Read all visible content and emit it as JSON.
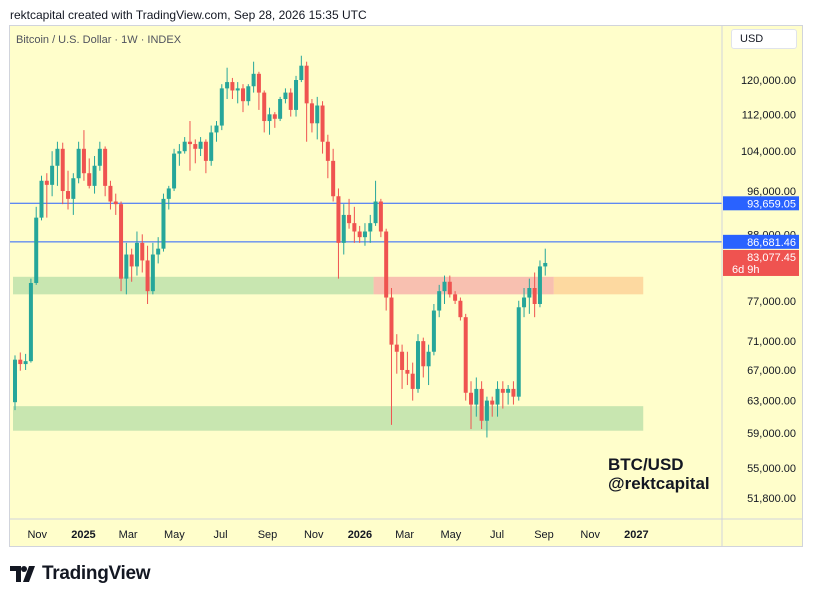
{
  "header": {
    "text": "rektcapital created with TradingView.com, Sep 28, 2026 15:35 UTC"
  },
  "symbol_label": "Bitcoin / U.S. Dollar · 1W · INDEX",
  "currency": "USD",
  "watermark": {
    "line1": "BTC/USD",
    "line2": "@rektcapital"
  },
  "footer": {
    "brand": "TradingView",
    "logo_icon": "tradingview-logo-icon"
  },
  "colors": {
    "background": "#fffecb",
    "up": "#26a69a",
    "down": "#ef5350",
    "zone_green": "#c8e6b0",
    "zone_red": "#f8c0b0",
    "zone_orange": "#fdd9a0",
    "hline": "#2962ff",
    "tag_blue": "#2962ff",
    "tag_red": "#ef5350"
  },
  "chart_data": {
    "type": "candlestick",
    "title": "Bitcoin / U.S. Dollar · 1W · INDEX",
    "y_scale": "log",
    "y_ticks": [
      120000,
      112000,
      104000,
      96000,
      88000,
      77000,
      71000,
      67000,
      63000,
      59000,
      55000,
      51800
    ],
    "y_tick_labels": [
      "120,000.00",
      "112,000.00",
      "104,000.00",
      "96,000.00",
      "88,000.00",
      "77,000.00",
      "71,000.00",
      "67,000.00",
      "63,000.00",
      "59,000.00",
      "55,000.00",
      "51,800.00"
    ],
    "x_labels": [
      {
        "label": "Nov",
        "date": "2024-11-01",
        "bold": false
      },
      {
        "label": "2025",
        "date": "2025-01-01",
        "bold": true
      },
      {
        "label": "Mar",
        "date": "2025-03-01",
        "bold": false
      },
      {
        "label": "May",
        "date": "2025-05-01",
        "bold": false
      },
      {
        "label": "Jul",
        "date": "2025-07-01",
        "bold": false
      },
      {
        "label": "Sep",
        "date": "2025-09-01",
        "bold": false
      },
      {
        "label": "Nov",
        "date": "2025-11-01",
        "bold": false
      },
      {
        "label": "2026",
        "date": "2026-01-01",
        "bold": true
      },
      {
        "label": "Mar",
        "date": "2026-03-01",
        "bold": false
      },
      {
        "label": "May",
        "date": "2026-05-01",
        "bold": false
      },
      {
        "label": "Jul",
        "date": "2026-07-01",
        "bold": false
      },
      {
        "label": "Sep",
        "date": "2026-09-01",
        "bold": false
      },
      {
        "label": "Nov",
        "date": "2026-11-01",
        "bold": false
      },
      {
        "label": "2027",
        "date": "2027-01-01",
        "bold": true
      }
    ],
    "first_candle_date": "2024-09-30",
    "candle_interval": "1W",
    "candles": [
      [
        62800,
        69000,
        61800,
        68400
      ],
      [
        68400,
        69400,
        66900,
        67800
      ],
      [
        67800,
        69200,
        67000,
        68200
      ],
      [
        68200,
        80500,
        68000,
        79800
      ],
      [
        79800,
        93000,
        79500,
        91000
      ],
      [
        91000,
        99000,
        90500,
        98000
      ],
      [
        98000,
        99500,
        91000,
        97200
      ],
      [
        97200,
        104000,
        95000,
        101000
      ],
      [
        101000,
        106000,
        97000,
        104500
      ],
      [
        104500,
        105800,
        93500,
        96000
      ],
      [
        96000,
        100000,
        92500,
        94500
      ],
      [
        94500,
        99500,
        91500,
        98500
      ],
      [
        98500,
        106000,
        97500,
        104500
      ],
      [
        104500,
        108500,
        98000,
        99500
      ],
      [
        99500,
        102500,
        96500,
        97000
      ],
      [
        97000,
        103000,
        95500,
        101000
      ],
      [
        101000,
        106000,
        100000,
        104500
      ],
      [
        104500,
        105000,
        95000,
        97000
      ],
      [
        97000,
        98000,
        92500,
        94000
      ],
      [
        94000,
        95500,
        91500,
        93500
      ],
      [
        93500,
        94000,
        78500,
        80500
      ],
      [
        80500,
        86500,
        78000,
        84500
      ],
      [
        84500,
        85500,
        80000,
        82500
      ],
      [
        82500,
        88500,
        81000,
        86500
      ],
      [
        86500,
        88000,
        81500,
        83500
      ],
      [
        83500,
        86000,
        76500,
        78500
      ],
      [
        78500,
        86500,
        78000,
        84500
      ],
      [
        84500,
        87500,
        83000,
        85500
      ],
      [
        85500,
        95500,
        85000,
        94500
      ],
      [
        94500,
        97000,
        92500,
        96500
      ],
      [
        96500,
        104500,
        96000,
        103500
      ],
      [
        103500,
        105500,
        101000,
        104000
      ],
      [
        104000,
        107000,
        103500,
        106000
      ],
      [
        106000,
        110500,
        100000,
        105500
      ],
      [
        105500,
        106500,
        101500,
        104500
      ],
      [
        104500,
        107000,
        103000,
        106000
      ],
      [
        106000,
        106500,
        99500,
        102000
      ],
      [
        102000,
        109500,
        101000,
        108000
      ],
      [
        108000,
        110500,
        106000,
        109500
      ],
      [
        109500,
        119000,
        108500,
        118000
      ],
      [
        118000,
        123000,
        115500,
        119500
      ],
      [
        119500,
        120500,
        115500,
        117500
      ],
      [
        117500,
        119500,
        114500,
        118000
      ],
      [
        118000,
        119000,
        112500,
        115000
      ],
      [
        115000,
        119000,
        114000,
        118500
      ],
      [
        118500,
        124500,
        117000,
        121500
      ],
      [
        121500,
        122000,
        113000,
        117000
      ],
      [
        117000,
        117500,
        108000,
        110500
      ],
      [
        110500,
        113500,
        107500,
        112000
      ],
      [
        112000,
        112500,
        109000,
        111000
      ],
      [
        111000,
        116000,
        110500,
        115500
      ],
      [
        115500,
        118000,
        114500,
        117000
      ],
      [
        117000,
        118000,
        111500,
        113000
      ],
      [
        113000,
        121000,
        111500,
        120000
      ],
      [
        120000,
        126000,
        119500,
        123500
      ],
      [
        123500,
        124500,
        106000,
        114500
      ],
      [
        114500,
        115500,
        108000,
        110000
      ],
      [
        110000,
        116000,
        106500,
        114000
      ],
      [
        114000,
        115000,
        103500,
        106000
      ],
      [
        106000,
        107500,
        98500,
        102000
      ],
      [
        102000,
        104500,
        94000,
        95000
      ],
      [
        95000,
        96500,
        80500,
        86500
      ],
      [
        86500,
        93500,
        84500,
        91500
      ],
      [
        91500,
        94500,
        89000,
        90000
      ],
      [
        90000,
        93000,
        86500,
        88500
      ],
      [
        88500,
        89500,
        86500,
        87500
      ],
      [
        87500,
        90000,
        86000,
        88500
      ],
      [
        88500,
        91500,
        86500,
        90000
      ],
      [
        90000,
        98000,
        89500,
        94000
      ],
      [
        94000,
        94500,
        87500,
        88500
      ],
      [
        88500,
        89000,
        75500,
        77500
      ],
      [
        77500,
        79000,
        60000,
        70500
      ],
      [
        70500,
        72000,
        66500,
        69500
      ],
      [
        69500,
        70500,
        64500,
        67000
      ],
      [
        67000,
        69500,
        65000,
        66500
      ],
      [
        66500,
        68000,
        63000,
        64500
      ],
      [
        64500,
        72000,
        64000,
        71000
      ],
      [
        71000,
        71500,
        66000,
        67500
      ],
      [
        67500,
        70500,
        65000,
        69500
      ],
      [
        69500,
        76500,
        69000,
        75500
      ],
      [
        75500,
        79500,
        74500,
        78500
      ],
      [
        78500,
        81000,
        76500,
        80000
      ],
      [
        80000,
        81000,
        77500,
        78000
      ],
      [
        78000,
        78500,
        76500,
        77000
      ],
      [
        77000,
        77500,
        74000,
        74500
      ],
      [
        74500,
        75000,
        63000,
        64000
      ],
      [
        64000,
        65500,
        59500,
        62500
      ],
      [
        62500,
        66000,
        61000,
        64500
      ],
      [
        64500,
        65500,
        59500,
        60500
      ],
      [
        60500,
        63500,
        58500,
        63000
      ],
      [
        63000,
        63500,
        61000,
        62500
      ],
      [
        62500,
        65500,
        61000,
        64500
      ],
      [
        64500,
        65500,
        62000,
        64000
      ],
      [
        64000,
        65000,
        62500,
        64500
      ],
      [
        64500,
        65500,
        62500,
        63500
      ],
      [
        63500,
        77000,
        63000,
        76000
      ],
      [
        76000,
        79000,
        74500,
        77500
      ],
      [
        77500,
        80500,
        75000,
        79000
      ],
      [
        79000,
        81500,
        74500,
        76500
      ],
      [
        76500,
        83500,
        76000,
        82500
      ],
      [
        82500,
        85500,
        81000,
        83077
      ]
    ],
    "zones": [
      {
        "name": "green-upper",
        "low": 78000,
        "high": 80800,
        "x_start": "2024-09-30",
        "x_end": "2026-01-19",
        "color": "#c8e6b0"
      },
      {
        "name": "red-upper",
        "low": 78000,
        "high": 80800,
        "x_start": "2026-01-19",
        "x_end": "2026-09-14",
        "color": "#f8c0b0"
      },
      {
        "name": "orange-upper",
        "low": 78000,
        "high": 80800,
        "x_start": "2026-09-14",
        "x_end": "2027-01-10",
        "color": "#fdd9a0"
      },
      {
        "name": "green-lower",
        "low": 59300,
        "high": 62300,
        "x_start": "2024-09-30",
        "x_end": "2027-01-10",
        "color": "#c8e6b0"
      }
    ],
    "horizontal_lines": [
      {
        "price": 93659.05,
        "label": "93,659.05",
        "color": "#2962ff"
      },
      {
        "price": 86681.46,
        "label": "86,681.46",
        "color": "#2962ff"
      }
    ],
    "last_price": {
      "price": 83077.45,
      "label": "83,077.45",
      "countdown": "6d 9h",
      "color": "#ef5350"
    }
  }
}
